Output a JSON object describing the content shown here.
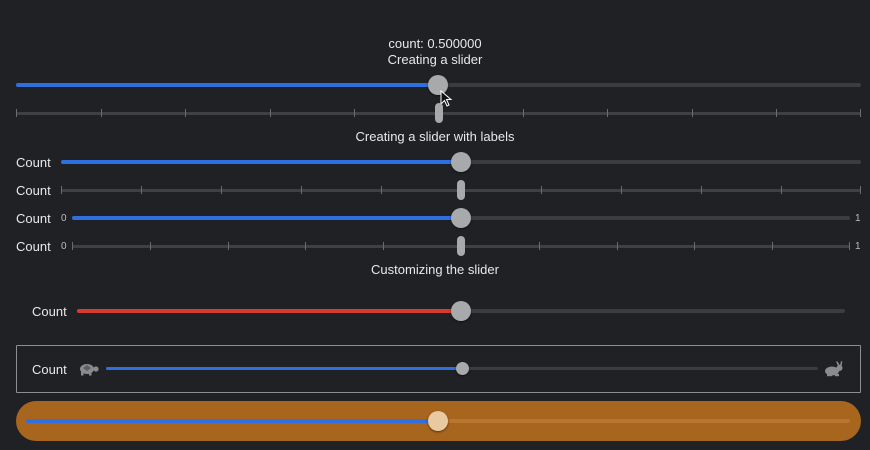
{
  "header": {
    "count_readout": "count: 0.500000",
    "title": "Creating a slider"
  },
  "section_labels": {
    "with_labels": "Creating a slider with labels",
    "customizing": "Customizing the slider"
  },
  "sliders": {
    "basic": {
      "value": 0.5
    },
    "basic_ticks": {
      "value": 0.5,
      "tick_count": 11
    },
    "labeled_1": {
      "label": "Count",
      "value": 0.5
    },
    "labeled_2": {
      "label": "Count",
      "value": 0.5,
      "tick_count": 11
    },
    "labeled_3": {
      "label": "Count",
      "min_label": "0",
      "max_label": "1",
      "value": 0.5
    },
    "labeled_4": {
      "label": "Count",
      "min_label": "0",
      "max_label": "1",
      "value": 0.5,
      "tick_count": 11
    },
    "custom_red": {
      "label": "Count",
      "value": 0.5,
      "tint": "#d83a2e"
    },
    "custom_icons": {
      "label": "Count",
      "value": 0.5,
      "min_icon": "tortoise-icon",
      "max_icon": "hare-icon"
    },
    "custom_orange": {
      "value": 0.5,
      "background": "#a8651e"
    }
  },
  "colors": {
    "background": "#1f2124",
    "accent": "#2f6fe0",
    "red_tint": "#d83a2e",
    "orange_bg": "#a8651e"
  }
}
